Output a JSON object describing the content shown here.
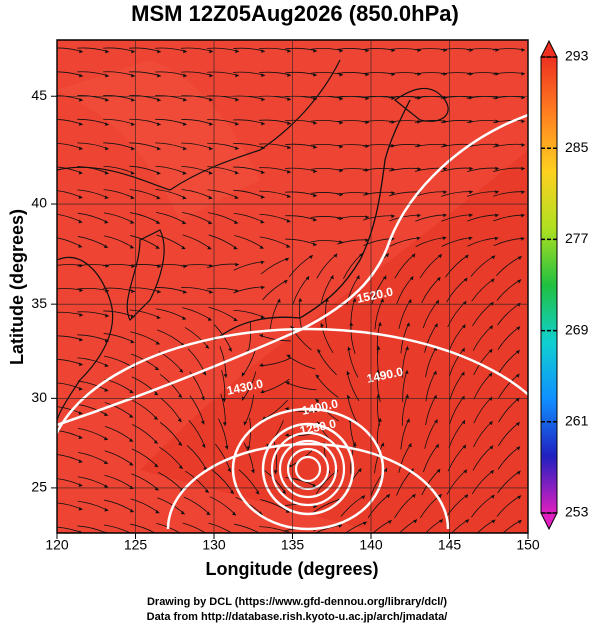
{
  "chart_data": {
    "type": "map",
    "title": "MSM 12Z05Aug2026 (850.0hPa)",
    "x_label": "Longitude (degrees)",
    "y_label": "Latitude  (degrees)",
    "projection": "mercator",
    "xlim": [
      120,
      150
    ],
    "ylim": [
      22.4,
      47.45
    ],
    "xticks": [
      120,
      125,
      130,
      135,
      140,
      145,
      150
    ],
    "yticks": [
      25,
      30,
      35,
      40,
      45
    ],
    "field_color": "#ee4433",
    "colorbar": {
      "lim": [
        253,
        293
      ],
      "ticks": [
        253,
        261,
        269,
        277,
        285,
        293
      ],
      "colors": [
        "#e020c0",
        "#2020c0",
        "#1090ff",
        "#10d0d0",
        "#20c040",
        "#b0e020",
        "#ffd020",
        "#ff8020",
        "#ee3020"
      ]
    },
    "contours": [
      {
        "level": 1520,
        "label": "1520.0"
      },
      {
        "level": 1490,
        "label": "1490.0"
      },
      {
        "level": 1430,
        "label": "1430.0"
      },
      {
        "level": 1400,
        "label": "1400.0"
      },
      {
        "level": 1250,
        "label": "1250.0"
      }
    ],
    "footer": [
      "Drawing by DCL (https://www.gfd-dennou.org/library/dcl/)",
      "Data from http://database.rish.kyoto-u.ac.jp/arch/jmadata/"
    ]
  }
}
